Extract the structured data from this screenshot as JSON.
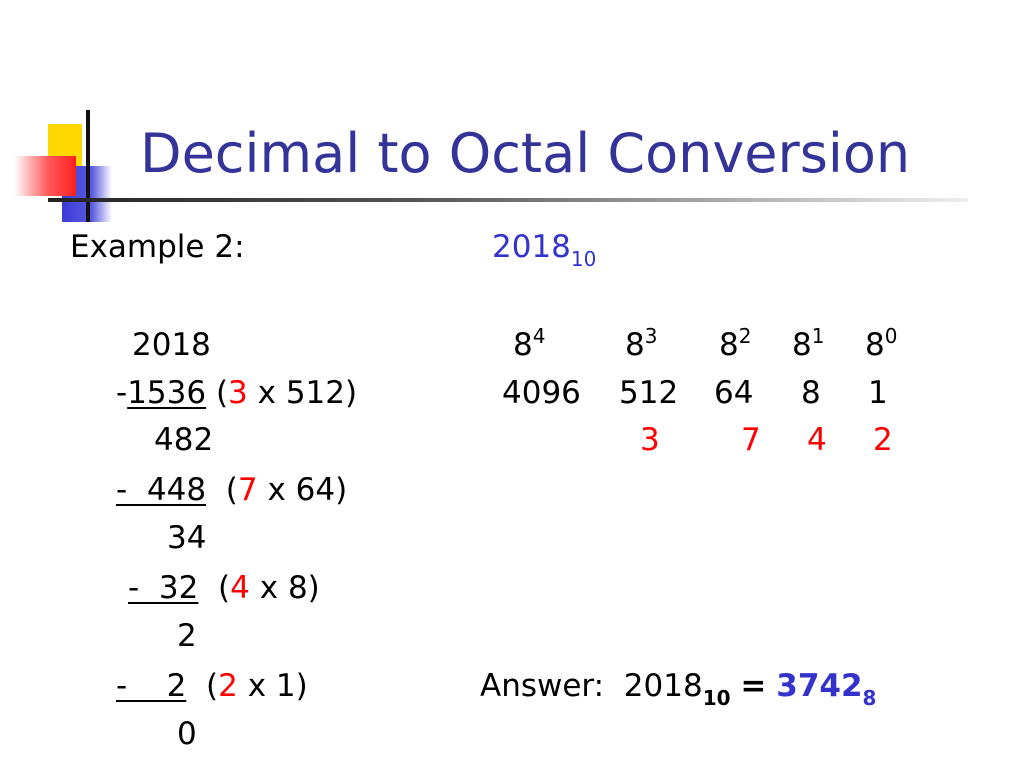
{
  "title": "Decimal to Octal Conversion",
  "example": {
    "label": "Example 2:",
    "number": "2018",
    "base": "10"
  },
  "steps": {
    "s1_value": "2018",
    "s2_minus": "-",
    "s2_value": "1536",
    "s2_open": " (",
    "s2_digit": "3",
    "s2_rest": " x 512)",
    "s3_value": "482",
    "s4_sub": "-  448",
    "s4_open": "  (",
    "s4_digit": "7",
    "s4_rest": " x 64)",
    "s5_value": "34",
    "s6_sub": "-  32",
    "s6_open": "  (",
    "s6_digit": "4",
    "s6_rest": " x 8)",
    "s7_value": "2",
    "s8_sub": "-    2",
    "s8_open": "  (",
    "s8_digit": "2",
    "s8_rest": " x 1)",
    "s9_value": "0"
  },
  "powers": [
    {
      "base": "8",
      "exp": "4",
      "value": "4096",
      "digit": ""
    },
    {
      "base": "8",
      "exp": "3",
      "value": "512",
      "digit": "3"
    },
    {
      "base": "8",
      "exp": "2",
      "value": "64",
      "digit": "7"
    },
    {
      "base": "8",
      "exp": "1",
      "value": "8",
      "digit": "4"
    },
    {
      "base": "8",
      "exp": "0",
      "value": "1",
      "digit": "2"
    }
  ],
  "answer": {
    "label": "Answer:",
    "decimal": "2018",
    "decimal_base": "10",
    "equals": "=",
    "octal": "3742",
    "octal_base": "8"
  },
  "colors": {
    "title": "#333399",
    "highlight": "#ff0000",
    "accent": "#3333cc"
  }
}
